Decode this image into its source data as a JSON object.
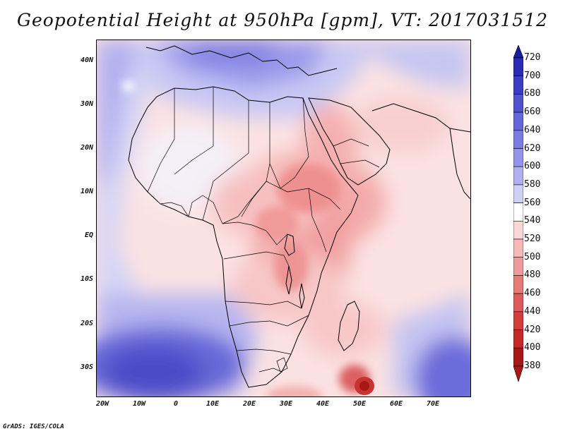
{
  "title": "Geopotential Height at 950hPa [gpm], VT: 2017031512",
  "credit": "GrADS: IGES/COLA",
  "variable": "Geopotential Height",
  "level": "950hPa",
  "units": "gpm",
  "valid_time": "2017031512",
  "axes": {
    "lat_labels": [
      "40N",
      "30N",
      "20N",
      "10N",
      "EQ",
      "10S",
      "20S",
      "30S"
    ],
    "lon_labels": [
      "20W",
      "10W",
      "0",
      "10E",
      "20E",
      "30E",
      "40E",
      "50E",
      "60E",
      "70E"
    ]
  },
  "colorbar": {
    "levels": [
      720,
      700,
      680,
      660,
      640,
      620,
      600,
      580,
      560,
      540,
      520,
      500,
      480,
      460,
      440,
      420,
      400,
      380
    ],
    "colors": [
      "#1a1a9e",
      "#2b2bb3",
      "#3d3dc4",
      "#5252d0",
      "#6666db",
      "#7b7be3",
      "#9494ea",
      "#b0b0f0",
      "#d0d0f6",
      "#ffffff",
      "#fbd6d6",
      "#f6b8b8",
      "#ef9a9a",
      "#e87a7a",
      "#df5a5a",
      "#d43c3c",
      "#c42a2a",
      "#a81818"
    ]
  },
  "colors": {
    "frame": "#000000",
    "coast": "#000000"
  }
}
